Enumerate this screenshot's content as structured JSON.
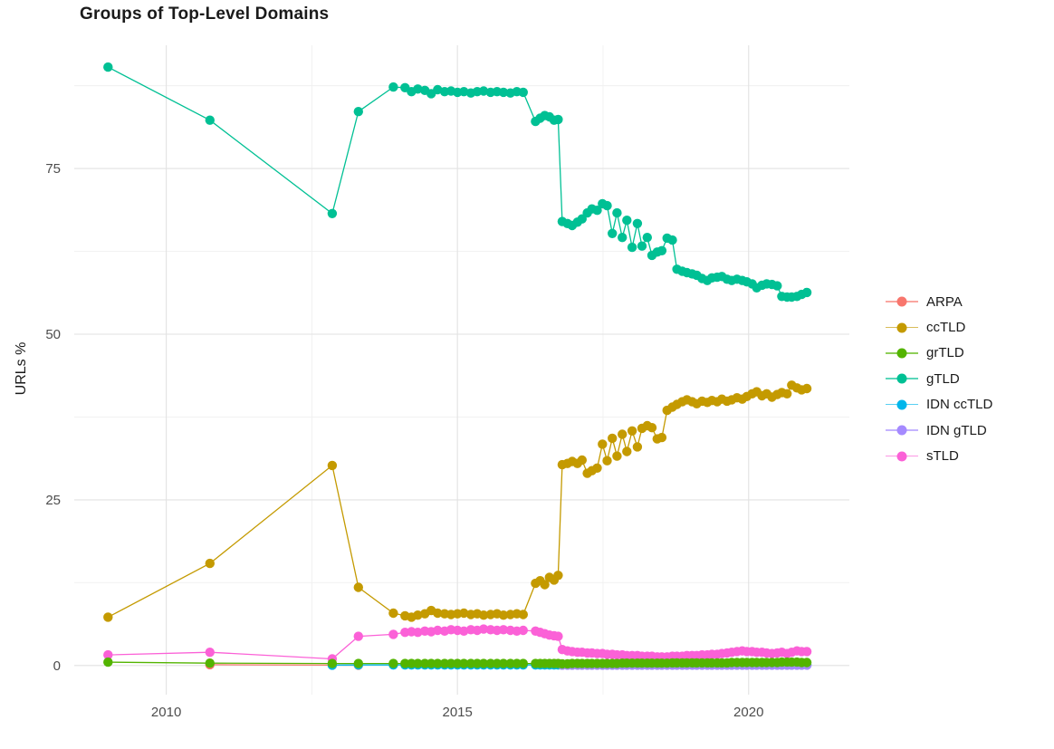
{
  "title": "Groups of Top-Level Domains",
  "axes": {
    "y_label": "URLs %",
    "x_tick_labels": [
      "2010",
      "2015",
      "2020"
    ],
    "y_tick_labels": [
      "0",
      "25",
      "50",
      "75"
    ]
  },
  "chart_data": {
    "type": "line",
    "title": "Groups of Top-Level Domains",
    "xlabel": "",
    "ylabel": "URLs %",
    "xlim": [
      2008.42,
      2021.73
    ],
    "ylim": [
      -4.4,
      93.6
    ],
    "grid": true,
    "legend_position": "right",
    "x_ticks_major": [
      2010,
      2015,
      2020
    ],
    "x_ticks_minor": [
      2012.5,
      2017.5
    ],
    "y_ticks_major": [
      0,
      25,
      50,
      75
    ],
    "y_ticks_minor": [
      12.5,
      37.5,
      62.5,
      87.5
    ],
    "colors": {
      "grid_major": "#e2e2e2",
      "grid_minor": "#f0f0f0",
      "tick_text": "#4d4d4d"
    },
    "x_groups": {
      "sparse": [
        2009.0,
        2010.75,
        2012.85,
        2013.3,
        2013.9
      ],
      "medium": [
        2014.1,
        2014.21,
        2014.32,
        2014.44,
        2014.55,
        2014.66,
        2014.78,
        2014.89,
        2015.0,
        2015.11,
        2015.23,
        2015.34,
        2015.45,
        2015.57,
        2015.68,
        2015.79,
        2015.91,
        2016.02,
        2016.13
      ],
      "step_c": [
        2016.34,
        2016.42,
        2016.5,
        2016.58,
        2016.66,
        2016.73
      ],
      "dense": [
        2016.8,
        2016.89,
        2016.97,
        2017.06,
        2017.14,
        2017.23,
        2017.31,
        2017.4,
        2017.49,
        2017.57,
        2017.66,
        2017.74,
        2017.83,
        2017.91,
        2018.0,
        2018.09,
        2018.17,
        2018.26,
        2018.34,
        2018.43,
        2018.51,
        2018.6,
        2018.69,
        2018.77,
        2018.86,
        2018.94,
        2019.03,
        2019.11,
        2019.2,
        2019.29,
        2019.37,
        2019.46,
        2019.54,
        2019.63,
        2019.71,
        2019.8,
        2019.89,
        2019.97,
        2020.06,
        2020.14,
        2020.23,
        2020.31,
        2020.4,
        2020.49,
        2020.57,
        2020.66,
        2020.74,
        2020.83,
        2020.91,
        2021.0
      ]
    },
    "draw_order": [
      "ARPA",
      "IDN ccTLD",
      "IDN gTLD",
      "sTLD",
      "ccTLD",
      "gTLD",
      "grTLD"
    ],
    "series": [
      {
        "name": "ARPA",
        "color": "#F8766D",
        "values": {
          "custom": [
            [
              2010.75,
              0.12
            ],
            [
              2012.85,
              0.06
            ],
            [
              2013.3,
              0.04
            ]
          ]
        }
      },
      {
        "name": "ccTLD",
        "color": "#C49A00",
        "values": {
          "sparse": [
            7.3,
            15.4,
            30.2,
            11.8,
            7.9
          ],
          "medium": [
            7.5,
            7.3,
            7.6,
            7.8,
            8.3,
            7.9,
            7.8,
            7.7,
            7.8,
            7.9,
            7.7,
            7.8,
            7.6,
            7.7,
            7.8,
            7.6,
            7.7,
            7.8,
            7.7
          ],
          "step_c": [
            12.4,
            12.8,
            12.2,
            13.3,
            12.9,
            13.6
          ],
          "dense": [
            30.3,
            30.5,
            30.8,
            30.5,
            31.0,
            29.0,
            29.4,
            29.8,
            33.4,
            30.9,
            34.3,
            31.6,
            34.9,
            32.3,
            35.4,
            33.0,
            35.8,
            36.2,
            35.9,
            34.2,
            34.4,
            38.5,
            39.0,
            39.4,
            39.8,
            40.1,
            39.8,
            39.5,
            39.9,
            39.7,
            40.0,
            39.8,
            40.2,
            39.9,
            40.1,
            40.4,
            40.2,
            40.6,
            41.0,
            41.3,
            40.7,
            41.0,
            40.5,
            40.9,
            41.2,
            41.0,
            42.3,
            41.9,
            41.6,
            41.8
          ]
        }
      },
      {
        "name": "grTLD",
        "color": "#53B400",
        "values": {
          "sparse": [
            0.5,
            0.35,
            0.3,
            0.3,
            0.3
          ],
          "medium": 0.3,
          "step_c": 0.3,
          "dense": [
            0.25,
            0.25,
            0.3,
            0.3,
            0.3,
            0.3,
            0.3,
            0.3,
            0.3,
            0.3,
            0.3,
            0.3,
            0.35,
            0.35,
            0.35,
            0.35,
            0.35,
            0.35,
            0.35,
            0.35,
            0.35,
            0.35,
            0.4,
            0.4,
            0.4,
            0.4,
            0.4,
            0.4,
            0.4,
            0.4,
            0.4,
            0.4,
            0.4,
            0.4,
            0.45,
            0.45,
            0.45,
            0.45,
            0.45,
            0.45,
            0.45,
            0.45,
            0.45,
            0.45,
            0.5,
            0.5,
            0.5,
            0.5,
            0.45,
            0.45
          ]
        }
      },
      {
        "name": "gTLD",
        "color": "#00C094",
        "values": {
          "sparse": [
            90.3,
            82.3,
            68.2,
            83.6,
            87.3
          ],
          "medium": [
            87.2,
            86.6,
            87.0,
            86.8,
            86.3,
            86.9,
            86.6,
            86.7,
            86.5,
            86.6,
            86.4,
            86.6,
            86.7,
            86.5,
            86.6,
            86.5,
            86.4,
            86.6,
            86.5
          ],
          "step_c": [
            82.1,
            82.6,
            83.0,
            82.8,
            82.3,
            82.4
          ],
          "dense": [
            67.0,
            66.7,
            66.4,
            66.9,
            67.4,
            68.3,
            68.9,
            68.7,
            69.7,
            69.4,
            65.2,
            68.3,
            64.6,
            67.2,
            63.1,
            66.7,
            63.3,
            64.6,
            61.9,
            62.4,
            62.6,
            64.5,
            64.2,
            59.8,
            59.5,
            59.3,
            59.1,
            58.9,
            58.4,
            58.1,
            58.5,
            58.6,
            58.7,
            58.3,
            58.1,
            58.3,
            58.1,
            57.9,
            57.6,
            57.0,
            57.4,
            57.6,
            57.5,
            57.3,
            55.7,
            55.6,
            55.6,
            55.7,
            56.0,
            56.3
          ]
        }
      },
      {
        "name": "IDN ccTLD",
        "color": "#00B6EB",
        "values": {
          "custom": [
            [
              2012.85,
              0.05
            ],
            [
              2013.3,
              0.08
            ],
            [
              2013.9,
              0.08
            ]
          ],
          "medium": 0.08,
          "step_c": 0.08,
          "dense": 0.08
        }
      },
      {
        "name": "IDN gTLD",
        "color": "#A58AFF",
        "values": {
          "dense": 0.06
        }
      },
      {
        "name": "sTLD",
        "color": "#FB61D7",
        "values": {
          "sparse": [
            1.6,
            2.0,
            1.0,
            4.4,
            4.7
          ],
          "medium": [
            5.0,
            5.1,
            5.0,
            5.2,
            5.1,
            5.3,
            5.2,
            5.4,
            5.3,
            5.2,
            5.4,
            5.3,
            5.5,
            5.4,
            5.3,
            5.4,
            5.3,
            5.2,
            5.3
          ],
          "step_c": [
            5.2,
            5.0,
            4.8,
            4.6,
            4.5,
            4.4
          ],
          "dense": [
            2.4,
            2.2,
            2.1,
            2.0,
            2.0,
            1.9,
            1.9,
            1.8,
            1.8,
            1.7,
            1.7,
            1.6,
            1.6,
            1.5,
            1.5,
            1.5,
            1.4,
            1.4,
            1.4,
            1.3,
            1.3,
            1.3,
            1.4,
            1.4,
            1.4,
            1.5,
            1.5,
            1.5,
            1.6,
            1.6,
            1.7,
            1.7,
            1.8,
            1.9,
            2.0,
            2.1,
            2.2,
            2.1,
            2.1,
            2.0,
            2.0,
            1.9,
            1.8,
            1.9,
            2.0,
            1.8,
            2.0,
            2.2,
            2.1,
            2.1
          ]
        }
      }
    ]
  }
}
